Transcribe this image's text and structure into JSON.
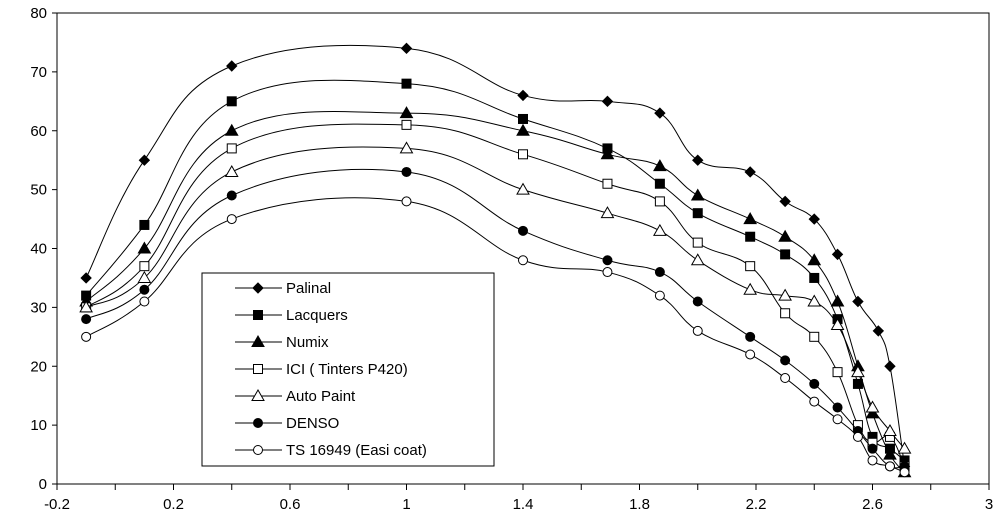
{
  "chart_data": {
    "type": "line",
    "title": "",
    "xlabel": "",
    "ylabel": "",
    "xlim": [
      -0.2,
      3
    ],
    "ylim": [
      0,
      80
    ],
    "x_ticks": [
      -0.2,
      0.2,
      0.6,
      1,
      1.4,
      1.8,
      2.2,
      2.6,
      3
    ],
    "x_tick_labels": [
      "-0.2",
      "0.2",
      "0.6",
      "1",
      "1.4",
      "1.8",
      "2.2",
      "2.6",
      "3"
    ],
    "y_ticks": [
      0,
      10,
      20,
      30,
      40,
      50,
      60,
      70,
      80
    ],
    "y_tick_labels": [
      "0",
      "10",
      "20",
      "30",
      "40",
      "50",
      "60",
      "70",
      "80"
    ],
    "grid": false,
    "legend_position": "lower-left inside plot",
    "line_color": "#000000",
    "series": [
      {
        "name": "Palinal",
        "marker": "diamond-filled",
        "points": [
          [
            -0.1,
            35
          ],
          [
            0.1,
            55
          ],
          [
            0.4,
            71
          ],
          [
            1.0,
            74
          ],
          [
            1.4,
            66
          ],
          [
            1.69,
            65
          ],
          [
            1.87,
            63
          ],
          [
            2.0,
            55
          ],
          [
            2.18,
            53
          ],
          [
            2.3,
            48
          ],
          [
            2.4,
            45
          ],
          [
            2.48,
            39
          ],
          [
            2.55,
            31
          ],
          [
            2.62,
            26
          ],
          [
            2.66,
            20
          ],
          [
            2.71,
            3
          ]
        ]
      },
      {
        "name": "Lacquers",
        "marker": "square-filled",
        "points": [
          [
            -0.1,
            32
          ],
          [
            0.1,
            44
          ],
          [
            0.4,
            65
          ],
          [
            1.0,
            68
          ],
          [
            1.4,
            62
          ],
          [
            1.69,
            57
          ],
          [
            1.87,
            51
          ],
          [
            2.0,
            46
          ],
          [
            2.18,
            42
          ],
          [
            2.3,
            39
          ],
          [
            2.4,
            35
          ],
          [
            2.48,
            28
          ],
          [
            2.55,
            17
          ],
          [
            2.6,
            8
          ],
          [
            2.66,
            6
          ],
          [
            2.71,
            4
          ]
        ]
      },
      {
        "name": "Numix",
        "marker": "triangle-filled",
        "points": [
          [
            -0.1,
            31
          ],
          [
            0.1,
            40
          ],
          [
            0.4,
            60
          ],
          [
            1.0,
            63
          ],
          [
            1.4,
            60
          ],
          [
            1.69,
            56
          ],
          [
            1.87,
            54
          ],
          [
            2.0,
            49
          ],
          [
            2.18,
            45
          ],
          [
            2.3,
            42
          ],
          [
            2.4,
            38
          ],
          [
            2.48,
            31
          ],
          [
            2.55,
            20
          ],
          [
            2.6,
            12
          ],
          [
            2.66,
            5
          ],
          [
            2.71,
            2
          ]
        ]
      },
      {
        "name": "ICI ( Tinters P420)",
        "marker": "square-open",
        "points": [
          [
            -0.1,
            30
          ],
          [
            0.1,
            37
          ],
          [
            0.4,
            57
          ],
          [
            1.0,
            61
          ],
          [
            1.4,
            56
          ],
          [
            1.69,
            51
          ],
          [
            1.87,
            48
          ],
          [
            2.0,
            41
          ],
          [
            2.18,
            37
          ],
          [
            2.3,
            29
          ],
          [
            2.4,
            25
          ],
          [
            2.48,
            19
          ],
          [
            2.55,
            10
          ],
          [
            2.6,
            7
          ],
          [
            2.66,
            8
          ],
          [
            2.71,
            3
          ]
        ]
      },
      {
        "name": "Auto Paint",
        "marker": "triangle-open",
        "points": [
          [
            -0.1,
            30
          ],
          [
            0.1,
            35
          ],
          [
            0.4,
            53
          ],
          [
            1.0,
            57
          ],
          [
            1.4,
            50
          ],
          [
            1.69,
            46
          ],
          [
            1.87,
            43
          ],
          [
            2.0,
            38
          ],
          [
            2.18,
            33
          ],
          [
            2.3,
            32
          ],
          [
            2.4,
            31
          ],
          [
            2.48,
            27
          ],
          [
            2.55,
            19
          ],
          [
            2.6,
            13
          ],
          [
            2.66,
            9
          ],
          [
            2.71,
            6
          ]
        ]
      },
      {
        "name": "DENSO",
        "marker": "circle-filled",
        "points": [
          [
            -0.1,
            28
          ],
          [
            0.1,
            33
          ],
          [
            0.4,
            49
          ],
          [
            1.0,
            53
          ],
          [
            1.4,
            43
          ],
          [
            1.69,
            38
          ],
          [
            1.87,
            36
          ],
          [
            2.0,
            31
          ],
          [
            2.18,
            25
          ],
          [
            2.3,
            21
          ],
          [
            2.4,
            17
          ],
          [
            2.48,
            13
          ],
          [
            2.55,
            9
          ],
          [
            2.6,
            6
          ],
          [
            2.66,
            3
          ],
          [
            2.71,
            3
          ]
        ]
      },
      {
        "name": "TS 16949 (Easi coat)",
        "marker": "circle-open",
        "points": [
          [
            -0.1,
            25
          ],
          [
            0.1,
            31
          ],
          [
            0.4,
            45
          ],
          [
            1.0,
            48
          ],
          [
            1.4,
            38
          ],
          [
            1.69,
            36
          ],
          [
            1.87,
            32
          ],
          [
            2.0,
            26
          ],
          [
            2.18,
            22
          ],
          [
            2.3,
            18
          ],
          [
            2.4,
            14
          ],
          [
            2.48,
            11
          ],
          [
            2.55,
            8
          ],
          [
            2.6,
            4
          ],
          [
            2.66,
            3
          ],
          [
            2.71,
            2
          ]
        ]
      }
    ]
  }
}
